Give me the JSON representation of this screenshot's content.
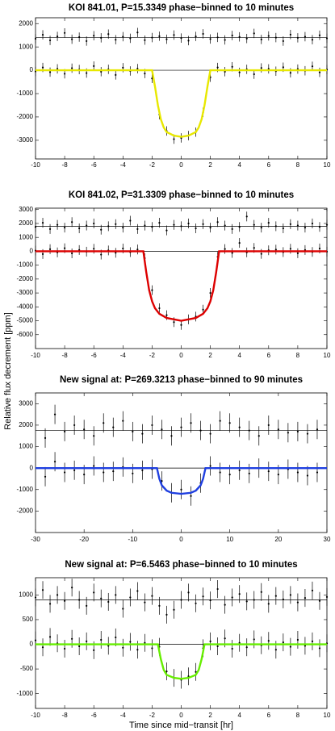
{
  "ylabel": "Relative flux decrement [ppm]",
  "chart_data": [
    {
      "type": "scatter",
      "title": "KOI 841.01, P=15.3349 phase−binned to 10 minutes",
      "xlim": [
        -10,
        10
      ],
      "xticks": [
        -10,
        -8,
        -6,
        -4,
        -2,
        0,
        2,
        4,
        6,
        8,
        10
      ],
      "ylim": [
        -3800,
        2250
      ],
      "yticks": [
        2000,
        1000,
        0,
        -1000,
        -2000,
        -3000
      ],
      "hlines": [
        0,
        1400
      ],
      "x": [
        -10,
        -9.5,
        -9,
        -8.5,
        -8,
        -7.5,
        -7,
        -6.5,
        -6,
        -5.5,
        -5,
        -4.5,
        -4,
        -3.5,
        -3,
        -2.5,
        -2,
        -1.5,
        -1,
        -0.5,
        0,
        0.5,
        1,
        1.5,
        2,
        2.5,
        3,
        3.5,
        4,
        4.5,
        5,
        5.5,
        6,
        6.5,
        7,
        7.5,
        8,
        8.5,
        9,
        9.5,
        10
      ],
      "series": [
        {
          "color": "#000000",
          "yerr": 200,
          "values": [
            -50,
            120,
            -80,
            60,
            -150,
            90,
            30,
            -120,
            180,
            -60,
            40,
            -200,
            110,
            -30,
            70,
            -140,
            -350,
            -1900,
            -2600,
            -2950,
            -2900,
            -2800,
            -2650,
            -1800,
            -300,
            120,
            -60,
            150,
            -90,
            40,
            -170,
            100,
            60,
            -40,
            130,
            -110,
            50,
            -20,
            170,
            -90,
            30
          ]
        },
        {
          "color": "#000000",
          "yerr": 200,
          "values": [
            1350,
            1520,
            1280,
            1450,
            1600,
            1330,
            1420,
            1250,
            1480,
            1390,
            1550,
            1310,
            1440,
            1370,
            1620,
            1290,
            1400,
            1460,
            1330,
            1510,
            1380,
            1270,
            1450,
            1560,
            1340,
            1410,
            1300,
            1490,
            1430,
            1360,
            1580,
            1320,
            1470,
            1400,
            1250,
            1530,
            1390,
            1440,
            1310,
            1500,
            1370
          ]
        },
        {
          "type": "line",
          "color": "#e8e800",
          "x": [
            -10,
            -2,
            -1.8,
            -1.6,
            -1.4,
            -1.2,
            -1,
            -0.5,
            0,
            0.5,
            1,
            1.2,
            1.4,
            1.6,
            1.8,
            2,
            10
          ],
          "values": [
            0,
            0,
            -700,
            -1500,
            -2100,
            -2450,
            -2650,
            -2800,
            -2850,
            -2800,
            -2650,
            -2450,
            -2100,
            -1500,
            -700,
            0,
            0
          ]
        }
      ]
    },
    {
      "type": "scatter",
      "title": "KOI 841.02, P=31.3309 phase−binned to 10 minutes",
      "xlim": [
        -10,
        10
      ],
      "xticks": [
        -10,
        -8,
        -6,
        -4,
        -2,
        0,
        2,
        4,
        6,
        8,
        10
      ],
      "ylim": [
        -7000,
        3100
      ],
      "yticks": [
        3000,
        2000,
        1000,
        0,
        -1000,
        -2000,
        -3000,
        -4000,
        -5000,
        -6000
      ],
      "hlines": [
        0,
        1800
      ],
      "x": [
        -10,
        -9.5,
        -9,
        -8.5,
        -8,
        -7.5,
        -7,
        -6.5,
        -6,
        -5.5,
        -5,
        -4.5,
        -4,
        -3.5,
        -3,
        -2.5,
        -2,
        -1.5,
        -1,
        -0.5,
        0,
        0.5,
        1,
        1.5,
        2,
        2.5,
        3,
        3.5,
        4,
        4.5,
        5,
        5.5,
        6,
        6.5,
        7,
        7.5,
        8,
        8.5,
        9,
        9.5,
        10
      ],
      "series": [
        {
          "color": "#000000",
          "yerr": 350,
          "values": [
            50,
            -200,
            150,
            -80,
            220,
            -150,
            90,
            -30,
            180,
            -240,
            60,
            -110,
            200,
            -60,
            130,
            -500,
            -2800,
            -4100,
            -4600,
            -5100,
            -5300,
            -4900,
            -4700,
            -4200,
            -3000,
            -400,
            160,
            -120,
            600,
            -80,
            240,
            -190,
            70,
            120,
            -60,
            180,
            -140,
            90,
            -50,
            200,
            -30
          ]
        },
        {
          "color": "#000000",
          "yerr": 350,
          "values": [
            1750,
            2050,
            1600,
            1900,
            1700,
            2100,
            1650,
            1850,
            2000,
            1550,
            1800,
            1950,
            1700,
            2200,
            1600,
            1850,
            1750,
            2050,
            1500,
            1900,
            1800,
            2000,
            1650,
            1950,
            1700,
            2100,
            1850,
            1600,
            1750,
            2500,
            1900,
            1700,
            2050,
            1800,
            1650,
            1950,
            1850,
            1700,
            2000,
            1750,
            1900
          ]
        },
        {
          "type": "line",
          "color": "#dd0000",
          "x": [
            -10,
            -2.6,
            -2.4,
            -2.2,
            -2,
            -1.8,
            -1.5,
            -1,
            0,
            1,
            1.5,
            1.8,
            2,
            2.2,
            2.4,
            2.6,
            10
          ],
          "values": [
            0,
            0,
            -1500,
            -2800,
            -3600,
            -4100,
            -4500,
            -4800,
            -5000,
            -4800,
            -4500,
            -4100,
            -3600,
            -2800,
            -1500,
            0,
            0
          ]
        }
      ]
    },
    {
      "type": "scatter",
      "title": "New signal at: P=269.3213 phase−binned to 90 minutes",
      "xlim": [
        -30,
        30
      ],
      "xticks": [
        -30,
        -20,
        -10,
        0,
        10,
        20,
        30
      ],
      "ylim": [
        -3000,
        3500
      ],
      "yticks": [
        3000,
        2000,
        1000,
        0,
        -1000,
        -2000
      ],
      "hlines": [
        0,
        1750
      ],
      "x": [
        -28,
        -26,
        -24,
        -22,
        -20,
        -18,
        -16,
        -14,
        -12,
        -10,
        -8,
        -6,
        -4,
        -2,
        0,
        2,
        4,
        6,
        8,
        10,
        12,
        14,
        16,
        18,
        20,
        22,
        24,
        26,
        28
      ],
      "series": [
        {
          "color": "#000000",
          "yerr": 450,
          "values": [
            -400,
            300,
            -200,
            -100,
            -300,
            100,
            -200,
            -150,
            50,
            -250,
            -100,
            -50,
            -600,
            -1150,
            -1000,
            -1300,
            -700,
            100,
            -200,
            -300,
            -100,
            -250,
            0,
            -150,
            -300,
            -50,
            -200,
            -350,
            -200
          ]
        },
        {
          "color": "#000000",
          "yerr": 450,
          "values": [
            1400,
            2500,
            1700,
            2000,
            1800,
            1500,
            2100,
            1900,
            2200,
            1700,
            1600,
            2000,
            1800,
            1500,
            1900,
            2100,
            1750,
            1600,
            2200,
            2100,
            1900,
            1750,
            1500,
            2000,
            1800,
            1650,
            1700,
            1600,
            1800
          ]
        },
        {
          "type": "line",
          "color": "#1f3fe0",
          "x": [
            -30,
            -5,
            -4.5,
            -4,
            -3,
            -2,
            0,
            2,
            3,
            4,
            4.5,
            5,
            30
          ],
          "values": [
            0,
            0,
            -500,
            -800,
            -1050,
            -1150,
            -1200,
            -1150,
            -1050,
            -800,
            -500,
            0,
            0
          ]
        }
      ]
    },
    {
      "type": "scatter",
      "title": "New signal at: P=6.5463 phase−binned to 10 minutes",
      "xlabel": "Time since mid−transit [hr]",
      "xlim": [
        -10,
        10
      ],
      "xticks": [
        -10,
        -8,
        -6,
        -4,
        -2,
        0,
        2,
        4,
        6,
        8,
        10
      ],
      "ylim": [
        -1300,
        1350
      ],
      "yticks": [
        1000,
        500,
        0,
        -500,
        -1000
      ],
      "hlines": [
        0,
        900
      ],
      "x": [
        -10,
        -9.5,
        -9,
        -8.5,
        -8,
        -7.5,
        -7,
        -6.5,
        -6,
        -5.5,
        -5,
        -4.5,
        -4,
        -3.5,
        -3,
        -2.5,
        -2,
        -1.5,
        -1,
        -0.5,
        0,
        0.5,
        1,
        1.5,
        2,
        2.5,
        3,
        3.5,
        4,
        4.5,
        5,
        5.5,
        6,
        6.5,
        7,
        7.5,
        8,
        8.5,
        9,
        9.5,
        10
      ],
      "series": [
        {
          "color": "#000000",
          "yerr": 180,
          "values": [
            80,
            -60,
            150,
            20,
            -90,
            110,
            -40,
            60,
            -120,
            90,
            -30,
            140,
            -70,
            50,
            -110,
            30,
            -80,
            -50,
            -550,
            -680,
            -720,
            -650,
            -560,
            -80,
            60,
            -40,
            120,
            -90,
            30,
            -60,
            100,
            -20,
            70,
            -110,
            40,
            -50,
            90,
            -30,
            60,
            -80,
            20
          ]
        },
        {
          "color": "#000000",
          "yerr": 180,
          "values": [
            950,
            1100,
            820,
            1000,
            880,
            1150,
            900,
            780,
            1050,
            930,
            860,
            1000,
            720,
            950,
            1080,
            850,
            980,
            780,
            600,
            700,
            900,
            1050,
            830,
            970,
            890,
            1120,
            800,
            950,
            1020,
            870,
            900,
            1060,
            820,
            980,
            910,
            1000,
            850,
            940,
            1090,
            880,
            960
          ]
        },
        {
          "type": "line",
          "color": "#66ee00",
          "x": [
            -10,
            -1.6,
            -1.4,
            -1.2,
            -1,
            -0.5,
            0,
            0.5,
            1,
            1.2,
            1.4,
            1.6,
            10
          ],
          "values": [
            0,
            0,
            -300,
            -520,
            -620,
            -680,
            -700,
            -680,
            -620,
            -520,
            -300,
            0,
            0
          ]
        }
      ]
    }
  ]
}
